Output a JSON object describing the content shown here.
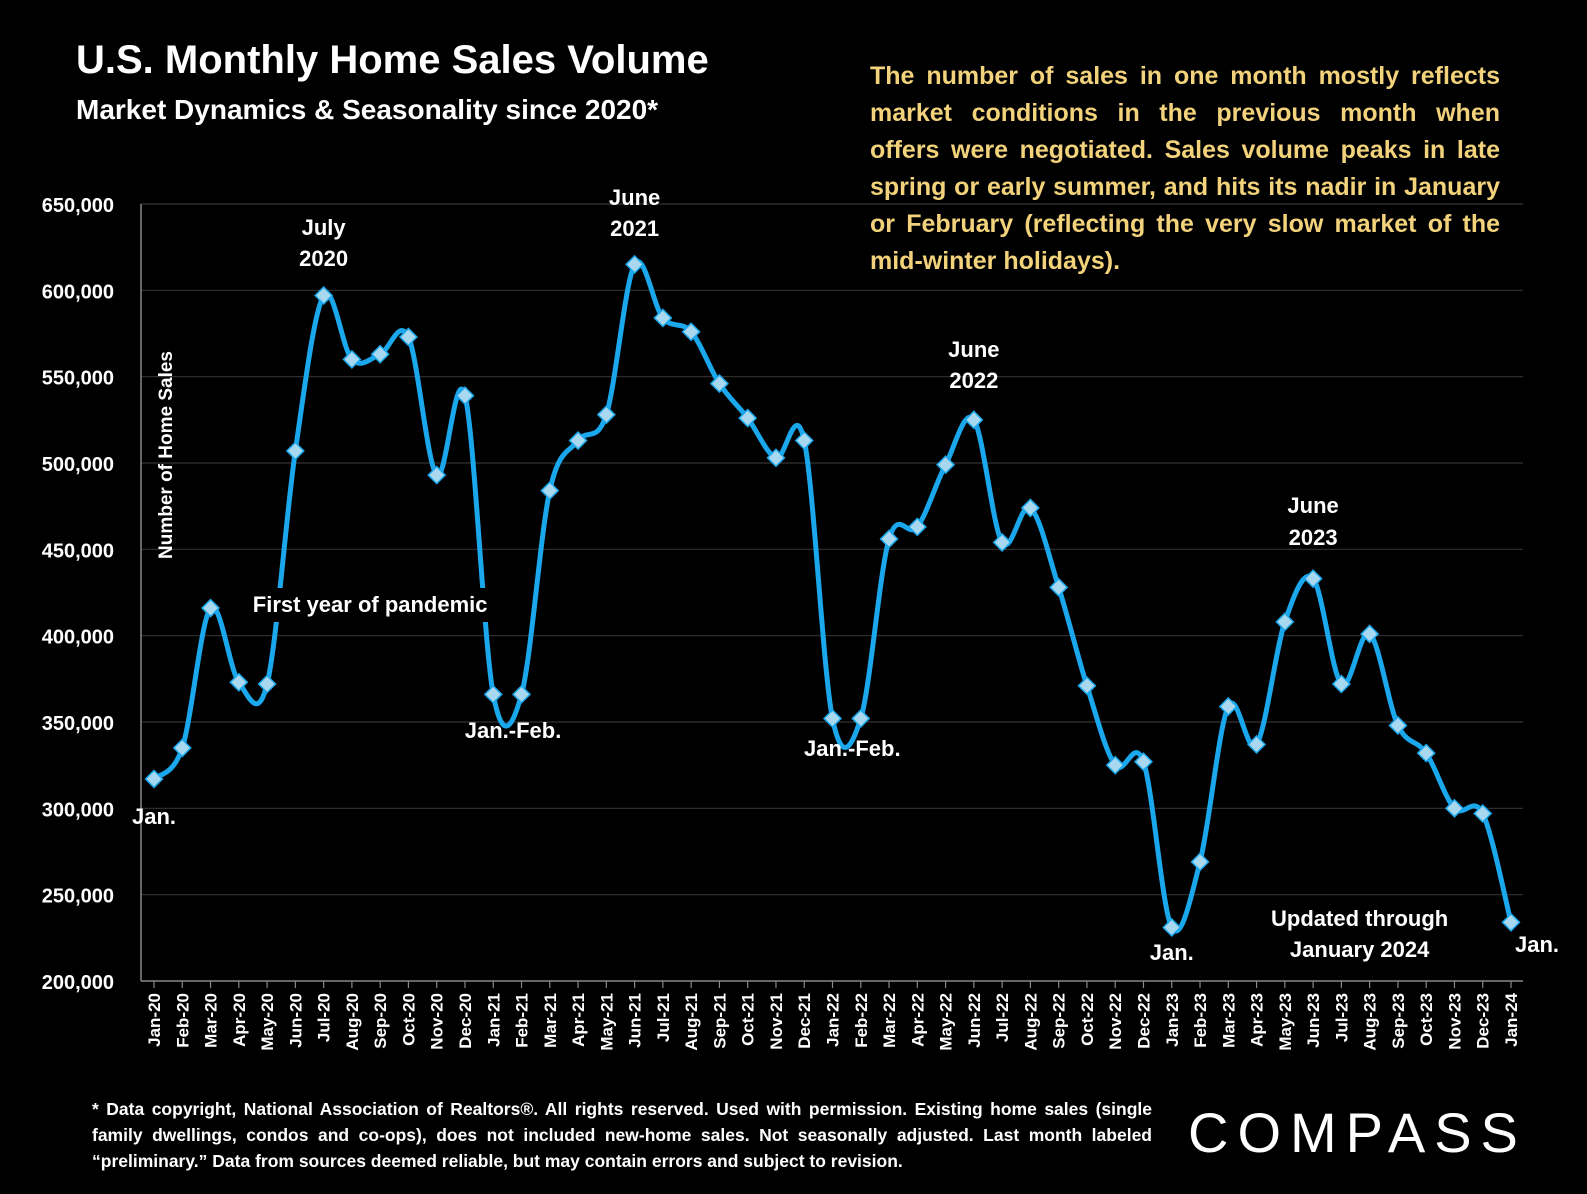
{
  "header": {
    "title": "U.S. Monthly Home Sales Volume",
    "subtitle": "Market Dynamics & Seasonality since 2020*"
  },
  "note": "The number of sales in one month mostly reflects market conditions in the previous month when offers were negotiated. Sales volume peaks in late spring or early summer, and hits its nadir in January or February (reflecting the very slow market of the mid-winter holidays).",
  "footnote": "* Data copyright, National Association of Realtors®. All rights reserved. Used with permission. Existing home sales (single family dwellings, condos and co-ops), does not included new-home sales. Not seasonally adjusted. Last month labeled “preliminary.” Data from sources deemed reliable, but may contain errors and subject to revision.",
  "logo": "COMPASS",
  "colors": {
    "line": "#1aa7ec",
    "marker": "#a8d8f0",
    "note": "#f2d27a",
    "grid": "#333333"
  },
  "chart_data": {
    "type": "line",
    "title": "U.S. Monthly Home Sales Volume",
    "ylabel": "Number of Home Sales",
    "xlabel": "",
    "ylim": [
      200000,
      650000
    ],
    "yticks": [
      200000,
      250000,
      300000,
      350000,
      400000,
      450000,
      500000,
      550000,
      600000,
      650000
    ],
    "ytick_labels": [
      "200,000",
      "250,000",
      "300,000",
      "350,000",
      "400,000",
      "450,000",
      "500,000",
      "550,000",
      "600,000",
      "650,000"
    ],
    "grid": true,
    "categories": [
      "Jan-20",
      "Feb-20",
      "Mar-20",
      "Apr-20",
      "May-20",
      "Jun-20",
      "Jul-20",
      "Aug-20",
      "Sep-20",
      "Oct-20",
      "Nov-20",
      "Dec-20",
      "Jan-21",
      "Feb-21",
      "Mar-21",
      "Apr-21",
      "May-21",
      "Jun-21",
      "Jul-21",
      "Aug-21",
      "Sep-21",
      "Oct-21",
      "Nov-21",
      "Dec-21",
      "Jan-22",
      "Feb-22",
      "Mar-22",
      "Apr-22",
      "May-22",
      "Jun-22",
      "Jul-22",
      "Aug-22",
      "Sep-22",
      "Oct-22",
      "Nov-22",
      "Dec-22",
      "Jan-23",
      "Feb-23",
      "Mar-23",
      "Apr-23",
      "May-23",
      "Jun-23",
      "Jul-23",
      "Aug-23",
      "Sep-23",
      "Oct-23",
      "Nov-23",
      "Dec-23",
      "Jan-24"
    ],
    "series": [
      {
        "name": "Home Sales",
        "values": [
          317000,
          335000,
          416000,
          373000,
          372000,
          507000,
          597000,
          560000,
          563000,
          573000,
          493000,
          539000,
          366000,
          366000,
          484000,
          513000,
          528000,
          615000,
          584000,
          576000,
          546000,
          526000,
          503000,
          513000,
          352000,
          352000,
          456000,
          463000,
          499000,
          525000,
          454000,
          474000,
          428000,
          371000,
          325000,
          327000,
          231000,
          269000,
          359000,
          337000,
          408000,
          433000,
          372000,
          401000,
          348000,
          332000,
          300000,
          297000,
          234000
        ]
      }
    ],
    "annotations": [
      {
        "text": "Jan.",
        "index": 0
      },
      {
        "text": "July",
        "index": 6
      },
      {
        "text": "2020",
        "index": 6
      },
      {
        "text": "First year of pandemic",
        "index": 8
      },
      {
        "text": "Jan.-Feb.",
        "index": 12
      },
      {
        "text": "June",
        "index": 17
      },
      {
        "text": "2021",
        "index": 17
      },
      {
        "text": "Jan.-Feb.",
        "index": 24
      },
      {
        "text": "June",
        "index": 29
      },
      {
        "text": "2022",
        "index": 29
      },
      {
        "text": "Jan.",
        "index": 36
      },
      {
        "text": "June",
        "index": 41
      },
      {
        "text": "2023",
        "index": 41
      },
      {
        "text": "Updated through",
        "index": 43
      },
      {
        "text": "January 2024",
        "index": 43
      },
      {
        "text": "Jan.",
        "index": 48
      }
    ]
  }
}
